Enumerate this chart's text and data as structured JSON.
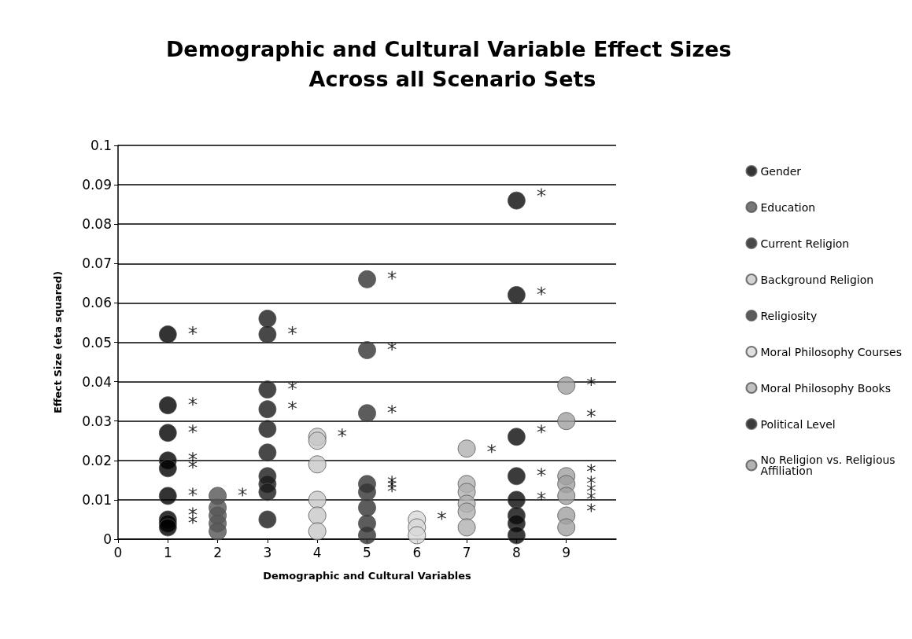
{
  "chart_data": {
    "type": "scatter",
    "title": "Demographic and Cultural Variable Effect Sizes Across all Scenario Sets",
    "xlabel": "Demographic and Cultural Variables",
    "ylabel": "Effect Size (eta squared)",
    "xlim": [
      0,
      10
    ],
    "xticks": [
      0,
      1,
      2,
      3,
      4,
      5,
      6,
      7,
      8,
      9
    ],
    "ylim": [
      0,
      0.1
    ],
    "yticks": [
      0,
      0.01,
      0.02,
      0.03,
      0.04,
      0.05,
      0.06,
      0.07,
      0.08,
      0.09,
      0.1
    ],
    "grid": "y",
    "legend": "right",
    "marker": "circle",
    "series": [
      {
        "name": "Gender",
        "color": "#000000",
        "x": [
          1,
          1,
          1,
          1,
          1,
          1,
          1,
          1,
          1
        ],
        "values": [
          0.052,
          0.034,
          0.027,
          0.02,
          0.018,
          0.011,
          0.005,
          0.004,
          0.003
        ]
      },
      {
        "name": "Education",
        "color": "#555555",
        "x": [
          2,
          2,
          2,
          2,
          2
        ],
        "values": [
          0.011,
          0.008,
          0.006,
          0.004,
          0.002
        ]
      },
      {
        "name": "Current Religion",
        "color": "#1a1a1a",
        "x": [
          3,
          3,
          3,
          3,
          3,
          3,
          3,
          3,
          3,
          3
        ],
        "values": [
          0.056,
          0.052,
          0.038,
          0.033,
          0.028,
          0.022,
          0.016,
          0.014,
          0.012,
          0.005
        ]
      },
      {
        "name": "Background Religion",
        "color": "#c8c8c8",
        "x": [
          4,
          4,
          4,
          4,
          4,
          4
        ],
        "values": [
          0.026,
          0.025,
          0.019,
          0.01,
          0.006,
          0.002
        ]
      },
      {
        "name": "Religiosity",
        "color": "#333333",
        "x": [
          5,
          5,
          5,
          5,
          5,
          5,
          5,
          5
        ],
        "values": [
          0.066,
          0.048,
          0.032,
          0.014,
          0.012,
          0.008,
          0.004,
          0.001
        ]
      },
      {
        "name": "Moral Philosophy Courses",
        "color": "#d8d8d8",
        "x": [
          6,
          6,
          6
        ],
        "values": [
          0.005,
          0.003,
          0.001
        ]
      },
      {
        "name": "Moral Philosophy Books",
        "color": "#b0b0b0",
        "x": [
          7,
          7,
          7,
          7,
          7,
          7
        ],
        "values": [
          0.023,
          0.014,
          0.012,
          0.009,
          0.007,
          0.003
        ]
      },
      {
        "name": "Political Level",
        "color": "#0a0a0a",
        "x": [
          8,
          8,
          8,
          8,
          8,
          8,
          8,
          8
        ],
        "values": [
          0.086,
          0.062,
          0.026,
          0.016,
          0.01,
          0.006,
          0.004,
          0.001
        ]
      },
      {
        "name": "No Religion vs. Religious Affiliation",
        "color": "#a0a0a0",
        "x": [
          9,
          9,
          9,
          9,
          9,
          9,
          9
        ],
        "values": [
          0.039,
          0.03,
          0.016,
          0.014,
          0.011,
          0.006,
          0.003
        ]
      },
      {
        "color": "#000000",
        "marker": "star",
        "x": [
          1.5,
          1.5,
          1.5,
          1.5,
          1.5,
          1.5,
          1.5,
          1.5,
          2.5,
          3.5,
          3.5,
          3.5,
          4.5,
          5.5,
          5.5,
          5.5,
          5.5,
          5.5,
          5.5,
          6.5,
          7.5,
          8.5,
          8.5,
          8.5,
          8.5,
          8.5,
          9.5,
          9.5,
          9.5,
          9.5,
          9.5,
          9.5,
          9.5
        ],
        "values": [
          0.053,
          0.035,
          0.028,
          0.021,
          0.019,
          0.012,
          0.007,
          0.005,
          0.012,
          0.053,
          0.039,
          0.034,
          0.027,
          0.067,
          0.049,
          0.033,
          0.015,
          0.014,
          0.013,
          0.006,
          0.023,
          0.088,
          0.063,
          0.028,
          0.017,
          0.011,
          0.04,
          0.032,
          0.018,
          0.015,
          0.013,
          0.011,
          0.008
        ]
      }
    ]
  }
}
